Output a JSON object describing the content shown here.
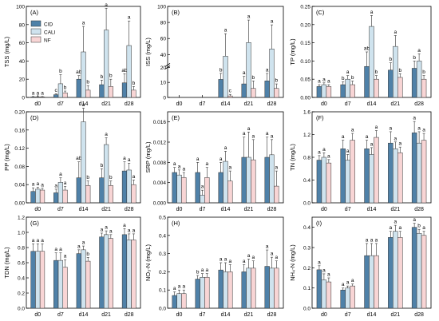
{
  "colors": {
    "CID": "#4f81a8",
    "CALI": "#cfe3ee",
    "NF": "#f8d5d5",
    "axis": "#000000"
  },
  "chart_data": [
    {
      "type": "bar",
      "panel_label": "(A)",
      "ylabel": "TSS (mg/L)",
      "categories": [
        "d0",
        "d7",
        "d14",
        "d21",
        "d28"
      ],
      "ylim": [
        0,
        100
      ],
      "yticks": [
        0,
        20,
        40,
        60,
        80,
        100
      ],
      "legend": [
        "CID",
        "CALI",
        "NF"
      ],
      "series": [
        {
          "name": "CID",
          "values": [
            0.5,
            3,
            20,
            14,
            16
          ],
          "err": [
            0.5,
            1,
            4,
            5,
            10
          ]
        },
        {
          "name": "CALI",
          "values": [
            0.5,
            15,
            50,
            74,
            57
          ],
          "err": [
            0.5,
            10,
            28,
            24,
            27
          ]
        },
        {
          "name": "NF",
          "values": [
            0.5,
            5,
            8,
            12,
            8
          ],
          "err": [
            0.5,
            2,
            5,
            8,
            4
          ]
        }
      ],
      "labels": [
        [
          "a",
          "a",
          "a"
        ],
        [
          "c",
          "b",
          "b"
        ],
        [
          "ab",
          "a",
          "b"
        ],
        [
          "b",
          "a",
          "b"
        ],
        [
          "ab",
          "a",
          "b"
        ]
      ]
    },
    {
      "type": "bar",
      "panel_label": "(B)",
      "ylabel": "ISS (mg/L)",
      "categories": [
        "d0",
        "d7",
        "d14",
        "d21",
        "d28"
      ],
      "axis_break": true,
      "low_ylim": [
        0,
        20
      ],
      "high_ylim": [
        0,
        100
      ],
      "yticks_low": [
        0,
        10,
        20
      ],
      "yticks_high": [
        40,
        60,
        80,
        100
      ],
      "series": [
        {
          "name": "CID",
          "values": [
            0,
            0,
            12,
            9,
            11
          ],
          "err": [
            0,
            0,
            4,
            5,
            5
          ]
        },
        {
          "name": "CALI",
          "values": [
            0,
            0,
            38,
            55,
            47
          ],
          "err": [
            0,
            0,
            28,
            28,
            30
          ]
        },
        {
          "name": "NF",
          "values": [
            0,
            0,
            1,
            6,
            6
          ],
          "err": [
            0,
            0,
            1,
            5,
            3
          ]
        }
      ],
      "labels": [
        [
          "",
          "",
          ""
        ],
        [
          "",
          "",
          ""
        ],
        [
          "b",
          "a",
          "c"
        ],
        [
          "a",
          "a",
          "b"
        ],
        [
          "a",
          "a",
          "b"
        ]
      ]
    },
    {
      "type": "bar",
      "panel_label": "(C)",
      "ylabel": "TP (mg/L)",
      "categories": [
        "d0",
        "d7",
        "d14",
        "d21",
        "d28"
      ],
      "ylim": [
        0,
        0.25
      ],
      "yticks": [
        0,
        0.05,
        0.1,
        0.15,
        0.2,
        0.25
      ],
      "series": [
        {
          "name": "CID",
          "values": [
            0.03,
            0.035,
            0.085,
            0.075,
            0.08
          ],
          "err": [
            0.005,
            0.008,
            0.04,
            0.02,
            0.02
          ]
        },
        {
          "name": "CALI",
          "values": [
            0.035,
            0.05,
            0.195,
            0.14,
            0.1
          ],
          "err": [
            0.005,
            0.01,
            0.03,
            0.03,
            0.02
          ]
        },
        {
          "name": "NF",
          "values": [
            0.03,
            0.035,
            0.05,
            0.055,
            0.05
          ],
          "err": [
            0.005,
            0.01,
            0.01,
            0.01,
            0.01
          ]
        }
      ],
      "labels": [
        [
          "a",
          "a",
          "a"
        ],
        [
          "b",
          "a",
          "b"
        ],
        [
          "ab",
          "a",
          "b"
        ],
        [
          "b",
          "a",
          "b"
        ],
        [
          "b",
          "a",
          "b"
        ]
      ]
    },
    {
      "type": "bar",
      "panel_label": "(D)",
      "ylabel": "PP (mg/L)",
      "categories": [
        "d0",
        "d7",
        "d14",
        "d21",
        "d28"
      ],
      "ylim": [
        0,
        0.2
      ],
      "yticks": [
        0,
        0.04,
        0.08,
        0.12,
        0.16,
        0.2
      ],
      "series": [
        {
          "name": "CID",
          "values": [
            0.025,
            0.022,
            0.055,
            0.055,
            0.07
          ],
          "err": [
            0.008,
            0.008,
            0.035,
            0.02,
            0.02
          ]
        },
        {
          "name": "CALI",
          "values": [
            0.03,
            0.045,
            0.178,
            0.128,
            0.072
          ],
          "err": [
            0.004,
            0.01,
            0.03,
            0.015,
            0.015
          ]
        },
        {
          "name": "NF",
          "values": [
            0.028,
            0.028,
            0.038,
            0.038,
            0.04
          ],
          "err": [
            0.004,
            0.008,
            0.01,
            0.01,
            0.01
          ]
        }
      ],
      "labels": [
        [
          "a",
          "a",
          "a"
        ],
        [
          "a",
          "a",
          "a"
        ],
        [
          "ab",
          "a",
          "b"
        ],
        [
          "b",
          "a",
          "b"
        ],
        [
          "a",
          "a",
          "a"
        ]
      ]
    },
    {
      "type": "bar",
      "panel_label": "(E)",
      "ylabel": "SRP (mg/L)",
      "categories": [
        "d0",
        "d7",
        "d14",
        "d21",
        "d28"
      ],
      "ylim": [
        0,
        0.018
      ],
      "yticks": [
        0,
        0.004,
        0.008,
        0.012,
        0.016
      ],
      "series": [
        {
          "name": "CID",
          "values": [
            0.006,
            0.006,
            0.006,
            0.009,
            0.009
          ],
          "err": [
            0.001,
            0.002,
            0.002,
            0.004,
            0.004
          ]
        },
        {
          "name": "CALI",
          "values": [
            0.0055,
            0.0015,
            0.0082,
            0.009,
            0.0095
          ],
          "err": [
            0.001,
            0.001,
            0.002,
            0.005,
            0.003
          ]
        },
        {
          "name": "NF",
          "values": [
            0.005,
            0.005,
            0.0043,
            0.0085,
            0.0033
          ],
          "err": [
            0.001,
            0.002,
            0.002,
            0.004,
            0.003
          ]
        }
      ],
      "labels": [
        [
          "a",
          "a",
          "a"
        ],
        [
          "a",
          "a",
          "a"
        ],
        [
          "a",
          "a",
          "a"
        ],
        [
          "a",
          "a",
          "a"
        ],
        [
          "a",
          "a",
          "a"
        ]
      ]
    },
    {
      "type": "bar",
      "panel_label": "(F)",
      "ylabel": "TN (mg/L)",
      "categories": [
        "d0",
        "d7",
        "d14",
        "d21",
        "d28"
      ],
      "ylim": [
        0,
        1.6
      ],
      "yticks": [
        0,
        0.4,
        0.8,
        1.2,
        1.6
      ],
      "series": [
        {
          "name": "CID",
          "values": [
            0.75,
            0.95,
            0.95,
            1.05,
            1.23
          ],
          "err": [
            0.08,
            0.15,
            0.15,
            0.2,
            0.2
          ]
        },
        {
          "name": "CALI",
          "values": [
            0.8,
            0.75,
            0.85,
            0.95,
            1.05
          ],
          "err": [
            0.08,
            0.1,
            0.12,
            0.12,
            0.2
          ]
        },
        {
          "name": "NF",
          "values": [
            0.7,
            1.1,
            1.15,
            0.88,
            1.1
          ],
          "err": [
            0.06,
            0.12,
            0.12,
            0.1,
            0.12
          ]
        }
      ],
      "labels": [
        [
          "a",
          "a",
          "a"
        ],
        [
          "a",
          "a",
          "a"
        ],
        [
          "a",
          "a",
          "a"
        ],
        [
          "a",
          "a",
          "a"
        ],
        [
          "a",
          "a",
          "a"
        ]
      ]
    },
    {
      "type": "bar",
      "panel_label": "(G)",
      "ylabel": "TDN (mg/L)",
      "categories": [
        "d0",
        "d7",
        "d14",
        "d21",
        "d28"
      ],
      "ylim": [
        0,
        1.2
      ],
      "yticks": [
        0,
        0.2,
        0.4,
        0.6,
        0.8,
        1.0,
        1.2
      ],
      "series": [
        {
          "name": "CID",
          "values": [
            0.75,
            0.63,
            0.72,
            0.94,
            0.97
          ],
          "err": [
            0.1,
            0.1,
            0.05,
            0.05,
            0.08
          ]
        },
        {
          "name": "CALI",
          "values": [
            0.75,
            0.63,
            0.77,
            0.97,
            0.9
          ],
          "err": [
            0.1,
            0.1,
            0.05,
            0.05,
            0.08
          ]
        },
        {
          "name": "NF",
          "values": [
            0.75,
            0.54,
            0.62,
            0.92,
            0.9
          ],
          "err": [
            0.1,
            0.1,
            0.05,
            0.05,
            0.08
          ]
        }
      ],
      "labels": [
        [
          "a",
          "a",
          "a"
        ],
        [
          "a",
          "a",
          "a"
        ],
        [
          "a",
          "a",
          "b"
        ],
        [
          "a",
          "a",
          "a"
        ],
        [
          "a",
          "a",
          "a"
        ]
      ]
    },
    {
      "type": "bar",
      "panel_label": "(H)",
      "ylabel": "NO₃-N (mg/L)",
      "categories": [
        "d0",
        "d7",
        "d14",
        "d21",
        "d28"
      ],
      "ylim": [
        0,
        0.5
      ],
      "yticks": [
        0,
        0.1,
        0.2,
        0.3,
        0.4,
        0.5
      ],
      "series": [
        {
          "name": "CID",
          "values": [
            0.07,
            0.16,
            0.21,
            0.2,
            0.23
          ],
          "err": [
            0.02,
            0.02,
            0.04,
            0.04,
            0.09
          ]
        },
        {
          "name": "CALI",
          "values": [
            0.08,
            0.17,
            0.2,
            0.22,
            0.22
          ],
          "err": [
            0.02,
            0.02,
            0.05,
            0.05,
            0.06
          ]
        },
        {
          "name": "NF",
          "values": [
            0.08,
            0.17,
            0.2,
            0.22,
            0.22
          ],
          "err": [
            0.02,
            0.02,
            0.04,
            0.04,
            0.04
          ]
        }
      ],
      "labels": [
        [
          "a",
          "a",
          "a"
        ],
        [
          "b",
          "a",
          "a"
        ],
        [
          "a",
          "a",
          "a"
        ],
        [
          "a",
          "a",
          "a"
        ],
        [
          "a",
          "a",
          "a"
        ]
      ]
    },
    {
      "type": "bar",
      "panel_label": "(I)",
      "ylabel": "NH₄-N (mg/L)",
      "categories": [
        "d0",
        "d7",
        "d14",
        "d21",
        "d28"
      ],
      "ylim": [
        0,
        0.45
      ],
      "yticks": [
        0,
        0.1,
        0.2,
        0.3,
        0.4
      ],
      "series": [
        {
          "name": "CID",
          "values": [
            0.19,
            0.09,
            0.26,
            0.35,
            0.4
          ],
          "err": [
            0.02,
            0.01,
            0.06,
            0.03,
            0.02
          ]
        },
        {
          "name": "CALI",
          "values": [
            0.14,
            0.1,
            0.26,
            0.38,
            0.37
          ],
          "err": [
            0.03,
            0.01,
            0.06,
            0.03,
            0.02
          ]
        },
        {
          "name": "NF",
          "values": [
            0.13,
            0.11,
            0.26,
            0.35,
            0.36
          ],
          "err": [
            0.02,
            0.01,
            0.06,
            0.03,
            0.02
          ]
        }
      ],
      "labels": [
        [
          "a",
          "a",
          "a"
        ],
        [
          "a",
          "a",
          "a"
        ],
        [
          "a",
          "a",
          "a"
        ],
        [
          "a",
          "a",
          "a"
        ],
        [
          "a",
          "b",
          "a"
        ]
      ]
    }
  ]
}
